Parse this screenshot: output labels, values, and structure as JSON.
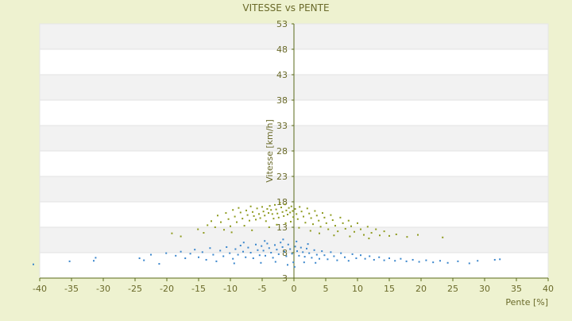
{
  "chart_data": {
    "type": "scatter",
    "title": "VITESSE vs PENTE",
    "xlabel": "Pente [%]",
    "ylabel": "Vitesse [km/h]",
    "xlim": [
      -40,
      40
    ],
    "ylim": [
      3,
      53
    ],
    "x_ticks": [
      "-40",
      "-35",
      "-30",
      "-25",
      "-20",
      "-15",
      "-10",
      "-5",
      "0",
      "5",
      "10",
      "15",
      "20",
      "25",
      "30",
      "35",
      "40"
    ],
    "y_ticks": [
      "3",
      "8",
      "13",
      "18",
      "23",
      "28",
      "33",
      "38",
      "43",
      "48",
      "53"
    ],
    "grid": true,
    "legend": "none",
    "colors": {
      "background": "#eef2d0",
      "plot_band_light": "#ffffff",
      "plot_band_dark": "#f2f2f2",
      "axis": "#5a6a1a",
      "text": "#6a6a2a",
      "series_high": "#8e9b1f",
      "series_low": "#3a86cc"
    },
    "series": [
      {
        "color": "#8e9b1f",
        "points": [
          [
            -19.2,
            11.8
          ],
          [
            -17.8,
            11.2
          ],
          [
            -15.1,
            12.6
          ],
          [
            -14.2,
            11.9
          ],
          [
            -13.6,
            13.4
          ],
          [
            -13.0,
            14.2
          ],
          [
            -12.4,
            13.0
          ],
          [
            -12.0,
            15.3
          ],
          [
            -11.5,
            14.0
          ],
          [
            -11.0,
            12.5
          ],
          [
            -10.7,
            15.8
          ],
          [
            -10.3,
            14.6
          ],
          [
            -10.0,
            13.2
          ],
          [
            -9.6,
            16.4
          ],
          [
            -9.3,
            15.1
          ],
          [
            -9.0,
            14.0
          ],
          [
            -8.7,
            16.8
          ],
          [
            -8.4,
            15.9
          ],
          [
            -8.1,
            14.7
          ],
          [
            -7.8,
            13.3
          ],
          [
            -7.5,
            16.3
          ],
          [
            -7.3,
            15.4
          ],
          [
            -7.0,
            14.3
          ],
          [
            -6.8,
            17.1
          ],
          [
            -6.5,
            16.0
          ],
          [
            -6.3,
            15.2
          ],
          [
            -6.0,
            14.5
          ],
          [
            -5.8,
            16.7
          ],
          [
            -5.5,
            15.6
          ],
          [
            -5.3,
            14.8
          ],
          [
            -5.0,
            17.0
          ],
          [
            -4.8,
            16.1
          ],
          [
            -4.6,
            15.3
          ],
          [
            -4.4,
            14.2
          ],
          [
            -4.2,
            16.6
          ],
          [
            -4.0,
            15.8
          ],
          [
            -3.8,
            17.2
          ],
          [
            -3.6,
            16.4
          ],
          [
            -3.4,
            15.6
          ],
          [
            -3.2,
            14.7
          ],
          [
            -3.0,
            17.4
          ],
          [
            -2.8,
            16.5
          ],
          [
            -2.6,
            15.7
          ],
          [
            -2.4,
            14.9
          ],
          [
            -2.2,
            17.8
          ],
          [
            -2.0,
            16.9
          ],
          [
            -1.8,
            16.0
          ],
          [
            -1.6,
            15.2
          ],
          [
            -1.4,
            17.5
          ],
          [
            -1.2,
            16.3
          ],
          [
            -1.0,
            15.5
          ],
          [
            -0.8,
            16.8
          ],
          [
            -0.6,
            15.9
          ],
          [
            -0.4,
            17.1
          ],
          [
            -0.2,
            16.2
          ],
          [
            -0.1,
            15.0
          ],
          [
            0.2,
            16.6
          ],
          [
            0.4,
            15.6
          ],
          [
            0.6,
            14.6
          ],
          [
            0.9,
            17.0
          ],
          [
            1.2,
            16.1
          ],
          [
            1.5,
            15.1
          ],
          [
            1.8,
            13.9
          ],
          [
            2.1,
            16.7
          ],
          [
            2.4,
            15.7
          ],
          [
            2.7,
            14.8
          ],
          [
            3.0,
            13.6
          ],
          [
            3.3,
            16.2
          ],
          [
            3.6,
            15.3
          ],
          [
            3.9,
            14.3
          ],
          [
            4.2,
            13.1
          ],
          [
            4.5,
            15.8
          ],
          [
            4.8,
            14.9
          ],
          [
            5.1,
            13.8
          ],
          [
            5.4,
            12.6
          ],
          [
            5.8,
            15.4
          ],
          [
            6.1,
            14.4
          ],
          [
            6.5,
            13.3
          ],
          [
            6.9,
            12.2
          ],
          [
            7.3,
            14.9
          ],
          [
            7.7,
            13.8
          ],
          [
            8.1,
            12.7
          ],
          [
            8.6,
            14.3
          ],
          [
            9.0,
            13.2
          ],
          [
            9.5,
            12.1
          ],
          [
            10.0,
            13.8
          ],
          [
            10.5,
            12.6
          ],
          [
            11.0,
            11.5
          ],
          [
            11.6,
            13.1
          ],
          [
            12.2,
            11.9
          ],
          [
            12.9,
            12.6
          ],
          [
            13.5,
            11.4
          ],
          [
            14.2,
            12.2
          ],
          [
            15.0,
            11.3
          ],
          [
            16.1,
            11.6
          ],
          [
            17.8,
            11.1
          ],
          [
            19.5,
            11.5
          ],
          [
            23.4,
            11.0
          ],
          [
            -9.8,
            12.0
          ],
          [
            -6.6,
            12.4
          ],
          [
            -3.9,
            13.0
          ],
          [
            -2.7,
            13.5
          ],
          [
            -1.3,
            13.8
          ],
          [
            -0.5,
            14.1
          ],
          [
            0.8,
            12.9
          ],
          [
            2.6,
            12.3
          ],
          [
            4.0,
            11.8
          ],
          [
            6.3,
            11.4
          ],
          [
            8.8,
            11.2
          ],
          [
            11.8,
            10.8
          ]
        ]
      },
      {
        "color": "#3a86cc",
        "points": [
          [
            -41.0,
            5.7
          ],
          [
            -35.3,
            6.3
          ],
          [
            -31.5,
            6.4
          ],
          [
            -31.2,
            7.0
          ],
          [
            -24.3,
            6.9
          ],
          [
            -23.6,
            6.5
          ],
          [
            -21.2,
            5.8
          ],
          [
            -20.1,
            7.9
          ],
          [
            -18.6,
            7.4
          ],
          [
            -17.8,
            8.2
          ],
          [
            -17.1,
            6.9
          ],
          [
            -16.3,
            7.8
          ],
          [
            -15.6,
            8.6
          ],
          [
            -15.0,
            7.1
          ],
          [
            -14.4,
            8.1
          ],
          [
            -13.8,
            6.6
          ],
          [
            -13.2,
            8.9
          ],
          [
            -12.7,
            7.6
          ],
          [
            -12.2,
            6.3
          ],
          [
            -11.6,
            8.4
          ],
          [
            -11.1,
            7.3
          ],
          [
            -10.6,
            9.1
          ],
          [
            -10.1,
            7.9
          ],
          [
            -9.6,
            6.8
          ],
          [
            -9.2,
            8.7
          ],
          [
            -8.8,
            7.6
          ],
          [
            -8.4,
            9.4
          ],
          [
            -8.0,
            8.2
          ],
          [
            -7.6,
            7.1
          ],
          [
            -7.2,
            9.0
          ],
          [
            -6.8,
            8.0
          ],
          [
            -6.4,
            6.9
          ],
          [
            -6.0,
            9.6
          ],
          [
            -5.7,
            8.5
          ],
          [
            -5.4,
            7.5
          ],
          [
            -5.1,
            9.3
          ],
          [
            -4.8,
            8.4
          ],
          [
            -4.5,
            7.4
          ],
          [
            -4.2,
            9.8
          ],
          [
            -3.9,
            8.9
          ],
          [
            -3.6,
            8.0
          ],
          [
            -3.3,
            7.0
          ],
          [
            -3.0,
            9.5
          ],
          [
            -2.7,
            8.6
          ],
          [
            -2.4,
            7.7
          ],
          [
            -2.1,
            10.0
          ],
          [
            -1.8,
            9.1
          ],
          [
            -1.5,
            8.2
          ],
          [
            -1.2,
            7.3
          ],
          [
            -0.9,
            9.6
          ],
          [
            -0.6,
            8.7
          ],
          [
            -0.3,
            7.8
          ],
          [
            -0.1,
            6.1
          ],
          [
            0.2,
            9.2
          ],
          [
            0.5,
            8.3
          ],
          [
            0.8,
            7.4
          ],
          [
            1.1,
            9.0
          ],
          [
            1.4,
            8.1
          ],
          [
            1.7,
            7.2
          ],
          [
            2.0,
            8.8
          ],
          [
            2.4,
            7.9
          ],
          [
            2.8,
            7.0
          ],
          [
            3.2,
            8.5
          ],
          [
            3.6,
            7.6
          ],
          [
            4.0,
            6.8
          ],
          [
            4.4,
            8.3
          ],
          [
            4.8,
            7.5
          ],
          [
            5.3,
            6.7
          ],
          [
            5.8,
            8.1
          ],
          [
            6.3,
            7.3
          ],
          [
            6.8,
            6.5
          ],
          [
            7.4,
            7.9
          ],
          [
            8.0,
            7.1
          ],
          [
            8.6,
            6.4
          ],
          [
            9.2,
            7.7
          ],
          [
            9.8,
            6.9
          ],
          [
            10.5,
            7.5
          ],
          [
            11.2,
            6.8
          ],
          [
            11.9,
            7.3
          ],
          [
            12.6,
            6.6
          ],
          [
            13.4,
            7.1
          ],
          [
            14.2,
            6.5
          ],
          [
            15.0,
            6.9
          ],
          [
            15.9,
            6.4
          ],
          [
            16.8,
            6.8
          ],
          [
            17.7,
            6.3
          ],
          [
            18.7,
            6.6
          ],
          [
            19.7,
            6.2
          ],
          [
            20.8,
            6.5
          ],
          [
            21.9,
            6.1
          ],
          [
            23.0,
            6.4
          ],
          [
            24.2,
            6.0
          ],
          [
            25.8,
            6.3
          ],
          [
            27.6,
            5.9
          ],
          [
            28.9,
            6.4
          ],
          [
            31.6,
            6.6
          ],
          [
            32.4,
            6.7
          ],
          [
            -9.4,
            5.9
          ],
          [
            -5.2,
            6.0
          ],
          [
            -2.9,
            6.2
          ],
          [
            -1.0,
            5.6
          ],
          [
            0.1,
            5.2
          ],
          [
            1.6,
            6.1
          ],
          [
            3.4,
            6.0
          ],
          [
            -7.9,
            10.0
          ],
          [
            -4.6,
            10.3
          ],
          [
            -1.7,
            10.6
          ],
          [
            0.4,
            10.2
          ],
          [
            2.2,
            9.7
          ],
          [
            -22.5,
            7.6
          ]
        ]
      }
    ]
  }
}
